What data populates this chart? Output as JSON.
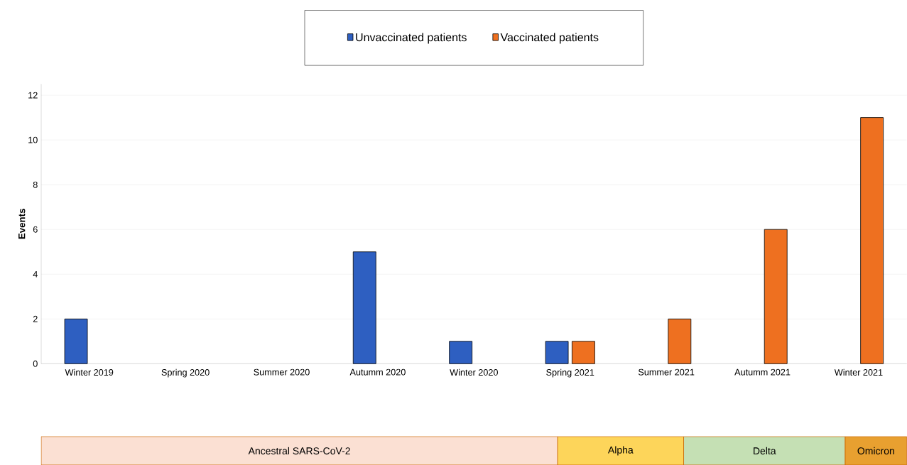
{
  "chart_data": {
    "type": "bar",
    "ylabel": "Events",
    "categories": [
      "Winter 2019",
      "Spring 2020",
      "Summer 2020",
      "Autumm 2020",
      "Winter 2020",
      "Spring 2021",
      "Summer 2021",
      "Autumm 2021",
      "Winter 2021"
    ],
    "series": [
      {
        "name": "Unvaccinated patients",
        "color": "#2e5fc1",
        "values": [
          2,
          null,
          null,
          5,
          1,
          1,
          null,
          null,
          null
        ]
      },
      {
        "name": "Vaccinated patients",
        "color": "#ee7020",
        "values": [
          null,
          null,
          null,
          null,
          null,
          1,
          2,
          6,
          11
        ]
      }
    ],
    "ylim": [
      0,
      12.5
    ],
    "yticks": [
      0,
      2,
      4,
      6,
      8,
      10,
      12
    ],
    "grid": "y",
    "legend": "top",
    "annotations": [
      "Ancestral SARS-CoV-2",
      "Alpha",
      "Delta",
      "Omicron"
    ]
  }
}
